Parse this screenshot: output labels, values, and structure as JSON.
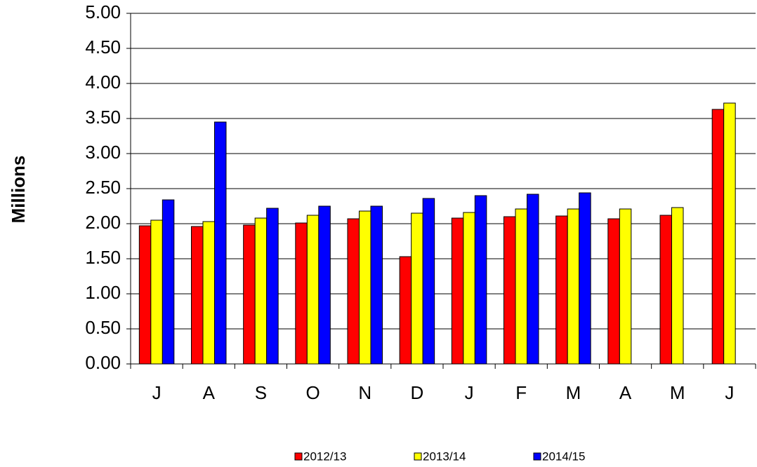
{
  "chart_data": {
    "type": "bar",
    "y_label": "Millions",
    "categories": [
      "J",
      "A",
      "S",
      "O",
      "N",
      "D",
      "J",
      "F",
      "M",
      "A",
      "M",
      "J"
    ],
    "series": [
      {
        "name": "2012/13",
        "color": "#ff0000",
        "values": [
          1.97,
          1.96,
          1.98,
          2.01,
          2.07,
          1.53,
          2.08,
          2.1,
          2.11,
          2.07,
          2.12,
          3.63
        ]
      },
      {
        "name": "2013/14",
        "color": "#ffff00",
        "values": [
          2.05,
          2.03,
          2.08,
          2.12,
          2.18,
          2.15,
          2.16,
          2.21,
          2.21,
          2.21,
          2.23,
          3.72
        ]
      },
      {
        "name": "2014/15",
        "color": "#0000ff",
        "values": [
          2.34,
          3.45,
          2.22,
          2.25,
          2.25,
          2.36,
          2.4,
          2.42,
          2.44,
          null,
          null,
          null
        ]
      }
    ],
    "ylim": [
      0,
      5
    ],
    "yticks": [
      {
        "value": 0,
        "label": "0.00"
      },
      {
        "value": 0.5,
        "label": "0.50"
      },
      {
        "value": 1,
        "label": "1.00"
      },
      {
        "value": 1.5,
        "label": "1.50"
      },
      {
        "value": 2,
        "label": "2.00"
      },
      {
        "value": 2.5,
        "label": "2.50"
      },
      {
        "value": 3,
        "label": "3.00"
      },
      {
        "value": 3.5,
        "label": "3.50"
      },
      {
        "value": 4,
        "label": "4.00"
      },
      {
        "value": 4.5,
        "label": "4.50"
      },
      {
        "value": 5,
        "label": "5.00"
      }
    ],
    "grid": true,
    "legend": "bottom"
  }
}
